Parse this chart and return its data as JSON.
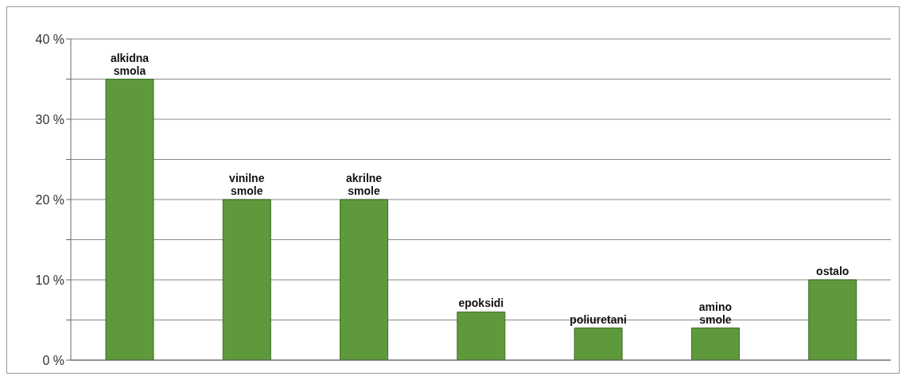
{
  "chart_data": {
    "type": "bar",
    "categories": [
      "alkidna smola",
      "vinilne smole",
      "akrilne smole",
      "epoksidi",
      "poliuretani",
      "amino smole",
      "ostalo"
    ],
    "values": [
      35,
      20,
      20,
      6,
      4,
      4,
      10
    ],
    "color": "#5e9a3c",
    "ylim": [
      0,
      40
    ],
    "yticks": [
      {
        "value": 0,
        "label": "0 %"
      },
      {
        "value": 5,
        "label": null
      },
      {
        "value": 10,
        "label": "10 %"
      },
      {
        "value": 15,
        "label": null
      },
      {
        "value": 20,
        "label": "20 %"
      },
      {
        "value": 25,
        "label": null
      },
      {
        "value": 30,
        "label": "30 %"
      },
      {
        "value": 35,
        "label": null
      },
      {
        "value": 40,
        "label": "40 %"
      }
    ],
    "grid": "y"
  }
}
